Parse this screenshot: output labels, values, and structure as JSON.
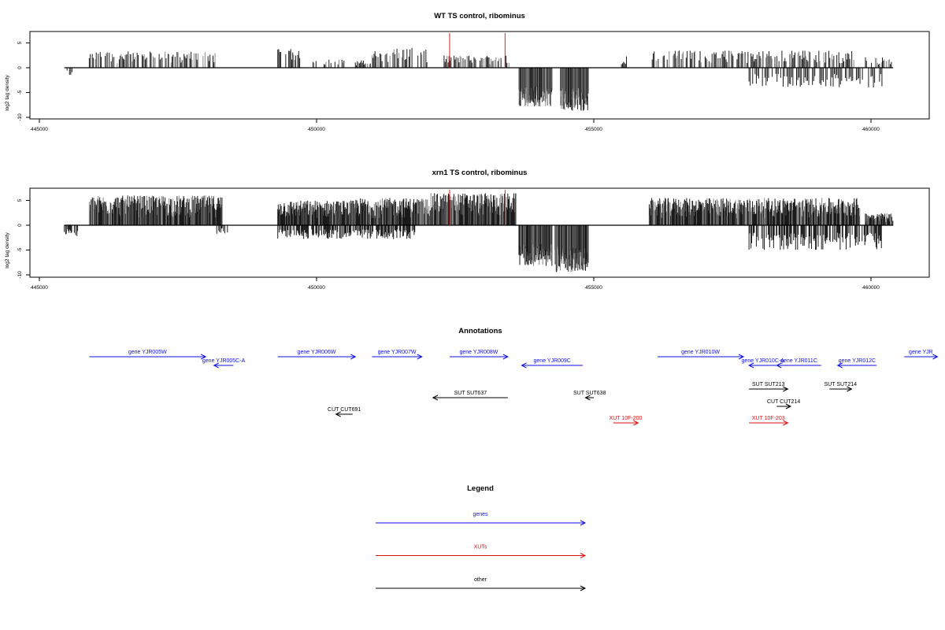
{
  "colors": {
    "axis": "#000000",
    "bars": "#1a1a1a",
    "bars_light": "#888888",
    "marker": "#e02020",
    "gene": "#1010e0",
    "xut": "#e01010",
    "other": "#000000"
  },
  "chart_data": [
    {
      "type": "bar",
      "title": "WT TS control, ribominus",
      "ylabel": "log2 tag density",
      "xlim": [
        445000,
        461000
      ],
      "ylim": [
        -10,
        7.5
      ],
      "yticks": [
        -10,
        -5,
        0,
        5
      ],
      "xticks": [
        445000,
        450000,
        455000,
        460000
      ],
      "baseline": [
        445450,
        460400
      ],
      "markers": [
        452400,
        453400
      ],
      "forward_regions": [
        {
          "from": 445900,
          "to": 448200,
          "max": 3.3
        },
        {
          "from": 449300,
          "to": 449700,
          "max": 3.8
        },
        {
          "from": 449900,
          "to": 450500,
          "max": 1.8
        },
        {
          "from": 450700,
          "to": 451000,
          "max": 1.5
        },
        {
          "from": 451000,
          "to": 452000,
          "max": 4.0
        },
        {
          "from": 452300,
          "to": 453500,
          "max": 2.5
        },
        {
          "from": 455500,
          "to": 455600,
          "max": 2.5
        },
        {
          "from": 456000,
          "to": 459700,
          "max": 3.5
        },
        {
          "from": 459900,
          "to": 460400,
          "max": 2.2
        }
      ],
      "reverse_regions": [
        {
          "from": 445500,
          "to": 445600,
          "min": -1.5
        },
        {
          "from": 453650,
          "to": 454250,
          "min": -7.8
        },
        {
          "from": 454400,
          "to": 454900,
          "min": -8.8
        },
        {
          "from": 457800,
          "to": 460200,
          "min": -4.0
        }
      ]
    },
    {
      "type": "bar",
      "title": "xrn1 TS control, ribominus",
      "ylabel": "log2 tag density",
      "xlim": [
        445000,
        461000
      ],
      "ylim": [
        -10,
        7.5
      ],
      "yticks": [
        -10,
        -5,
        0,
        5
      ],
      "xticks": [
        445000,
        450000,
        455000,
        460000
      ],
      "baseline": [
        445450,
        460400
      ],
      "markers": [
        452400,
        453400
      ],
      "forward_regions": [
        {
          "from": 445900,
          "to": 448300,
          "max": 6.0
        },
        {
          "from": 449300,
          "to": 450700,
          "max": 5.0
        },
        {
          "from": 450700,
          "to": 452000,
          "max": 5.5
        },
        {
          "from": 452000,
          "to": 453600,
          "max": 6.5
        },
        {
          "from": 456000,
          "to": 459800,
          "max": 5.5
        },
        {
          "from": 459900,
          "to": 460400,
          "max": 2.5
        }
      ],
      "reverse_regions": [
        {
          "from": 445450,
          "to": 445700,
          "min": -2.5
        },
        {
          "from": 448200,
          "to": 448400,
          "min": -1.8
        },
        {
          "from": 449300,
          "to": 451800,
          "min": -2.8
        },
        {
          "from": 453650,
          "to": 454250,
          "min": -8.2
        },
        {
          "from": 454300,
          "to": 454900,
          "min": -9.5
        },
        {
          "from": 457800,
          "to": 460200,
          "min": -5.0
        }
      ]
    }
  ],
  "annotations": {
    "title": "Annotations",
    "features": [
      {
        "label": "gene YJR005W",
        "class": "gene",
        "start": 445900,
        "end": 448000,
        "dir": "right",
        "row": 0
      },
      {
        "label": "gene YJR005C-A",
        "class": "gene",
        "start": 448150,
        "end": 448500,
        "dir": "left",
        "row": 1
      },
      {
        "label": "gene YJR006W",
        "class": "gene",
        "start": 449300,
        "end": 450700,
        "dir": "right",
        "row": 0
      },
      {
        "label": "gene YJR007W",
        "class": "gene",
        "start": 451000,
        "end": 451900,
        "dir": "right",
        "row": 0
      },
      {
        "label": "gene YJR008W",
        "class": "gene",
        "start": 452400,
        "end": 453450,
        "dir": "right",
        "row": 0
      },
      {
        "label": "gene YJR009C",
        "class": "gene",
        "start": 453700,
        "end": 454800,
        "dir": "left",
        "row": 1
      },
      {
        "label": "gene YJR010W",
        "class": "gene",
        "start": 456150,
        "end": 457700,
        "dir": "right",
        "row": 0
      },
      {
        "label": "gene YJR010C-A",
        "class": "gene",
        "start": 457800,
        "end": 458300,
        "dir": "left",
        "row": 1
      },
      {
        "label": "gene YJR011C",
        "class": "gene",
        "start": 458300,
        "end": 459100,
        "dir": "left",
        "row": 1
      },
      {
        "label": "gene YJR012C",
        "class": "gene",
        "start": 459400,
        "end": 460100,
        "dir": "left",
        "row": 1
      },
      {
        "label": "gene YJR",
        "class": "gene",
        "start": 460600,
        "end": 461200,
        "dir": "right",
        "row": 0
      },
      {
        "label": "SUT SUT637",
        "class": "other",
        "start": 452100,
        "end": 453450,
        "dir": "left",
        "row": 3
      },
      {
        "label": "SUT SUT638",
        "class": "other",
        "start": 454850,
        "end": 455000,
        "dir": "left",
        "row": 3
      },
      {
        "label": "SUT SUT213",
        "class": "other",
        "start": 457800,
        "end": 458500,
        "dir": "right",
        "row": 2
      },
      {
        "label": "SUT SUT214",
        "class": "other",
        "start": 459250,
        "end": 459650,
        "dir": "right",
        "row": 2
      },
      {
        "label": "CUT CUT214",
        "class": "other",
        "start": 458300,
        "end": 458550,
        "dir": "right",
        "row": 4
      },
      {
        "label": "CUT CUT691",
        "class": "other",
        "start": 450350,
        "end": 450650,
        "dir": "left",
        "row": 5
      },
      {
        "label": "XUT 10F-200",
        "class": "xut",
        "start": 455350,
        "end": 455800,
        "dir": "right",
        "row": 6
      },
      {
        "label": "XUT 10F-203",
        "class": "xut",
        "start": 457800,
        "end": 458500,
        "dir": "right",
        "row": 6
      }
    ]
  },
  "legend": {
    "title": "Legend",
    "items": [
      {
        "label": "genes",
        "class": "gene"
      },
      {
        "label": "XUTs",
        "class": "xut"
      },
      {
        "label": "other",
        "class": "other"
      }
    ]
  }
}
